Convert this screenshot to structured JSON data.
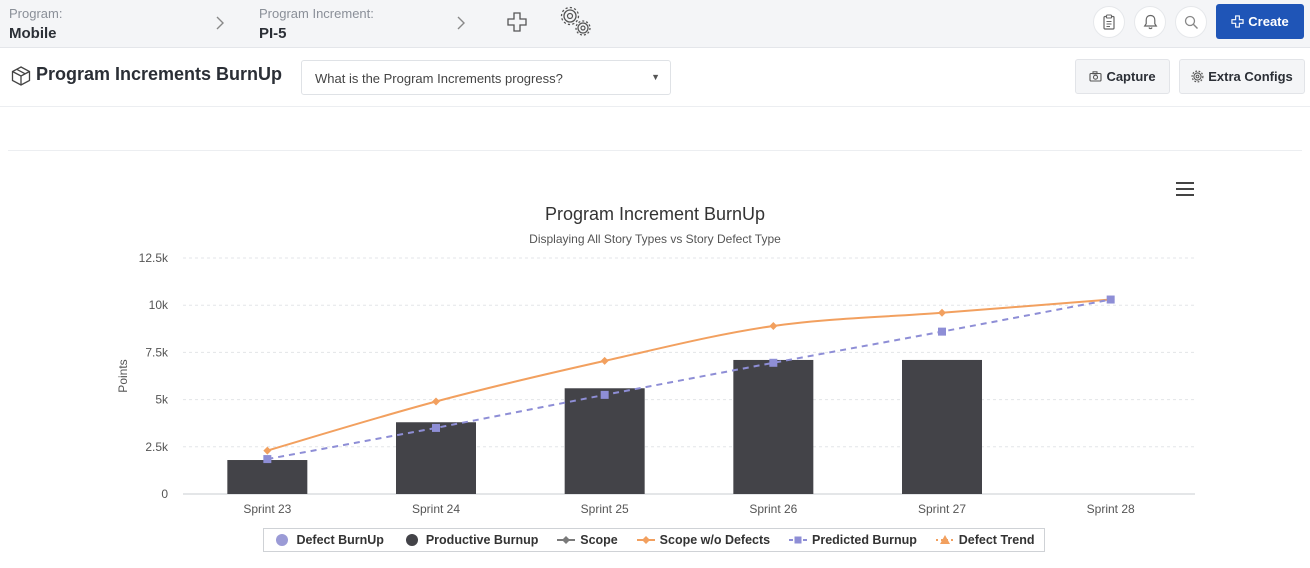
{
  "header": {
    "program_label": "Program:",
    "program_value": "Mobile",
    "increment_label": "Program Increment:",
    "increment_value": "PI-5",
    "create_label": "Create",
    "brand_color": "#1f55b7"
  },
  "toolbar": {
    "page_title": "Program Increments BurnUp",
    "question_select": "What is the Program Increments progress?",
    "capture_label": "Capture",
    "extra_configs_label": "Extra Configs"
  },
  "chart_data": {
    "type": "bar",
    "title": "Program Increment BurnUp",
    "subtitle": "Displaying All Story Types vs Story Defect Type",
    "xlabel": "",
    "ylabel": "Points",
    "ylim": [
      0,
      12500
    ],
    "ytick_labels": [
      "0",
      "2.5k",
      "5k",
      "7.5k",
      "10k",
      "12.5k"
    ],
    "ytick_values": [
      0,
      2500,
      5000,
      7500,
      10000,
      12500
    ],
    "categories": [
      "Sprint 23",
      "Sprint 24",
      "Sprint 25",
      "Sprint 26",
      "Sprint 27",
      "Sprint 28"
    ],
    "grid": true,
    "legend_position": "bottom",
    "series": [
      {
        "name": "Defect BurnUp",
        "kind": "bar",
        "color": "#9b9bd6",
        "values": [
          null,
          null,
          null,
          null,
          null,
          null
        ]
      },
      {
        "name": "Productive Burnup",
        "kind": "bar",
        "color": "#434348",
        "values": [
          1800,
          3800,
          5600,
          7100,
          7100,
          null
        ]
      },
      {
        "name": "Scope",
        "kind": "line",
        "color": "#7a7a7a",
        "values": [
          null,
          null,
          null,
          null,
          null,
          null
        ]
      },
      {
        "name": "Scope w/o Defects",
        "kind": "line",
        "color": "#f2a05f",
        "values": [
          2300,
          4900,
          7050,
          8900,
          9600,
          10300
        ]
      },
      {
        "name": "Predicted Burnup",
        "kind": "dashed-line",
        "color": "#8e8ed6",
        "values": [
          1850,
          3500,
          5250,
          6950,
          8600,
          10300
        ]
      },
      {
        "name": "Defect Trend",
        "kind": "line",
        "color": "#f2a05f",
        "values": [
          null,
          null,
          null,
          null,
          null,
          null
        ]
      }
    ]
  }
}
